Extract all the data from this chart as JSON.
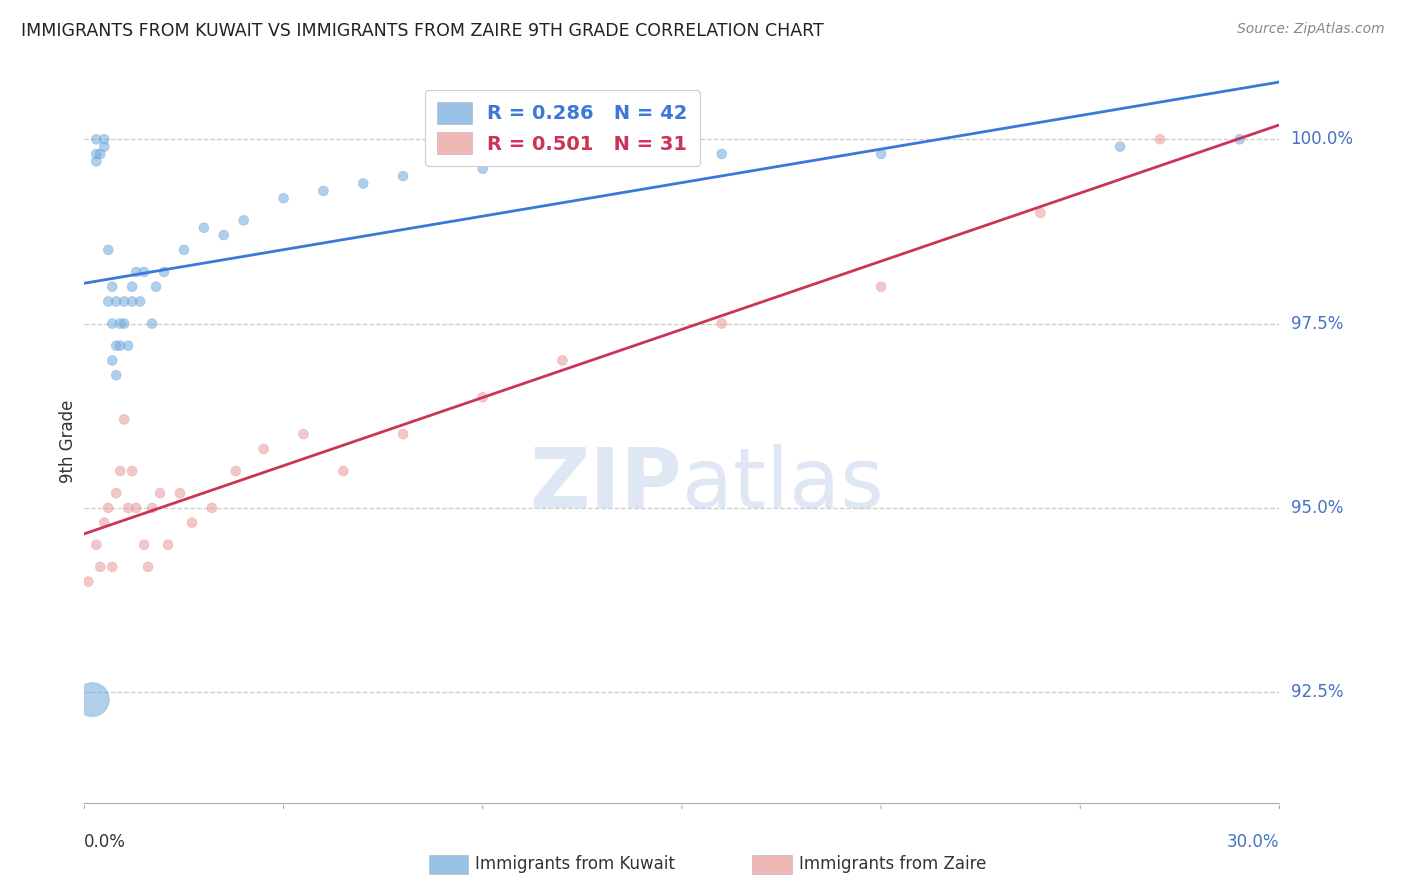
{
  "title": "IMMIGRANTS FROM KUWAIT VS IMMIGRANTS FROM ZAIRE 9TH GRADE CORRELATION CHART",
  "source": "Source: ZipAtlas.com",
  "ylabel": "9th Grade",
  "ylabel_ticks": [
    "92.5%",
    "95.0%",
    "97.5%",
    "100.0%"
  ],
  "ylabel_vals": [
    0.925,
    0.95,
    0.975,
    1.0
  ],
  "ymin": 0.91,
  "ymax": 1.008,
  "xmin": 0.0,
  "xmax": 0.3,
  "blue_color": "#a4c2f4",
  "pink_color": "#f4b8c1",
  "blue_line_color": "#3c78d8",
  "pink_line_color": "#cc3355",
  "blue_fill": "#6fa8dc",
  "pink_fill": "#ea9999",
  "kuwait_x": [
    0.002,
    0.003,
    0.003,
    0.003,
    0.004,
    0.005,
    0.005,
    0.006,
    0.006,
    0.007,
    0.007,
    0.007,
    0.008,
    0.008,
    0.008,
    0.009,
    0.009,
    0.01,
    0.01,
    0.011,
    0.012,
    0.012,
    0.013,
    0.014,
    0.015,
    0.017,
    0.018,
    0.02,
    0.025,
    0.03,
    0.035,
    0.04,
    0.05,
    0.06,
    0.07,
    0.08,
    0.1,
    0.13,
    0.16,
    0.2,
    0.26,
    0.29
  ],
  "kuwait_y": [
    0.924,
    0.997,
    0.998,
    1.0,
    0.998,
    0.999,
    1.0,
    0.978,
    0.985,
    0.97,
    0.975,
    0.98,
    0.968,
    0.972,
    0.978,
    0.972,
    0.975,
    0.975,
    0.978,
    0.972,
    0.978,
    0.98,
    0.982,
    0.978,
    0.982,
    0.975,
    0.98,
    0.982,
    0.985,
    0.988,
    0.987,
    0.989,
    0.992,
    0.993,
    0.994,
    0.995,
    0.996,
    0.997,
    0.998,
    0.998,
    0.999,
    1.0
  ],
  "kuwait_sizes": [
    50,
    50,
    50,
    50,
    50,
    50,
    50,
    50,
    50,
    50,
    50,
    50,
    50,
    50,
    50,
    50,
    50,
    50,
    50,
    50,
    50,
    50,
    50,
    50,
    50,
    50,
    50,
    50,
    50,
    50,
    50,
    50,
    50,
    50,
    50,
    50,
    50,
    50,
    50,
    50,
    50,
    50
  ],
  "kuwait_large_idx": 0,
  "kuwait_large_size": 600,
  "zaire_x": [
    0.001,
    0.003,
    0.004,
    0.005,
    0.006,
    0.007,
    0.008,
    0.009,
    0.01,
    0.011,
    0.012,
    0.013,
    0.015,
    0.016,
    0.017,
    0.019,
    0.021,
    0.024,
    0.027,
    0.032,
    0.038,
    0.045,
    0.055,
    0.065,
    0.08,
    0.1,
    0.12,
    0.16,
    0.2,
    0.24,
    0.27
  ],
  "zaire_y": [
    0.94,
    0.945,
    0.942,
    0.948,
    0.95,
    0.942,
    0.952,
    0.955,
    0.962,
    0.95,
    0.955,
    0.95,
    0.945,
    0.942,
    0.95,
    0.952,
    0.945,
    0.952,
    0.948,
    0.95,
    0.955,
    0.958,
    0.96,
    0.955,
    0.96,
    0.965,
    0.97,
    0.975,
    0.98,
    0.99,
    1.0
  ],
  "zaire_sizes": [
    50,
    50,
    50,
    50,
    50,
    50,
    50,
    50,
    50,
    50,
    50,
    50,
    50,
    50,
    50,
    50,
    50,
    50,
    50,
    50,
    50,
    50,
    50,
    50,
    50,
    50,
    50,
    50,
    50,
    50,
    50
  ],
  "legend_r_blue": "R = 0.286",
  "legend_n_blue": "N = 42",
  "legend_r_pink": "R = 0.501",
  "legend_n_pink": "N = 31",
  "label_kuwait": "Immigrants from Kuwait",
  "label_zaire": "Immigrants from Zaire",
  "xtick_left": "0.0%",
  "xtick_right": "30.0%"
}
